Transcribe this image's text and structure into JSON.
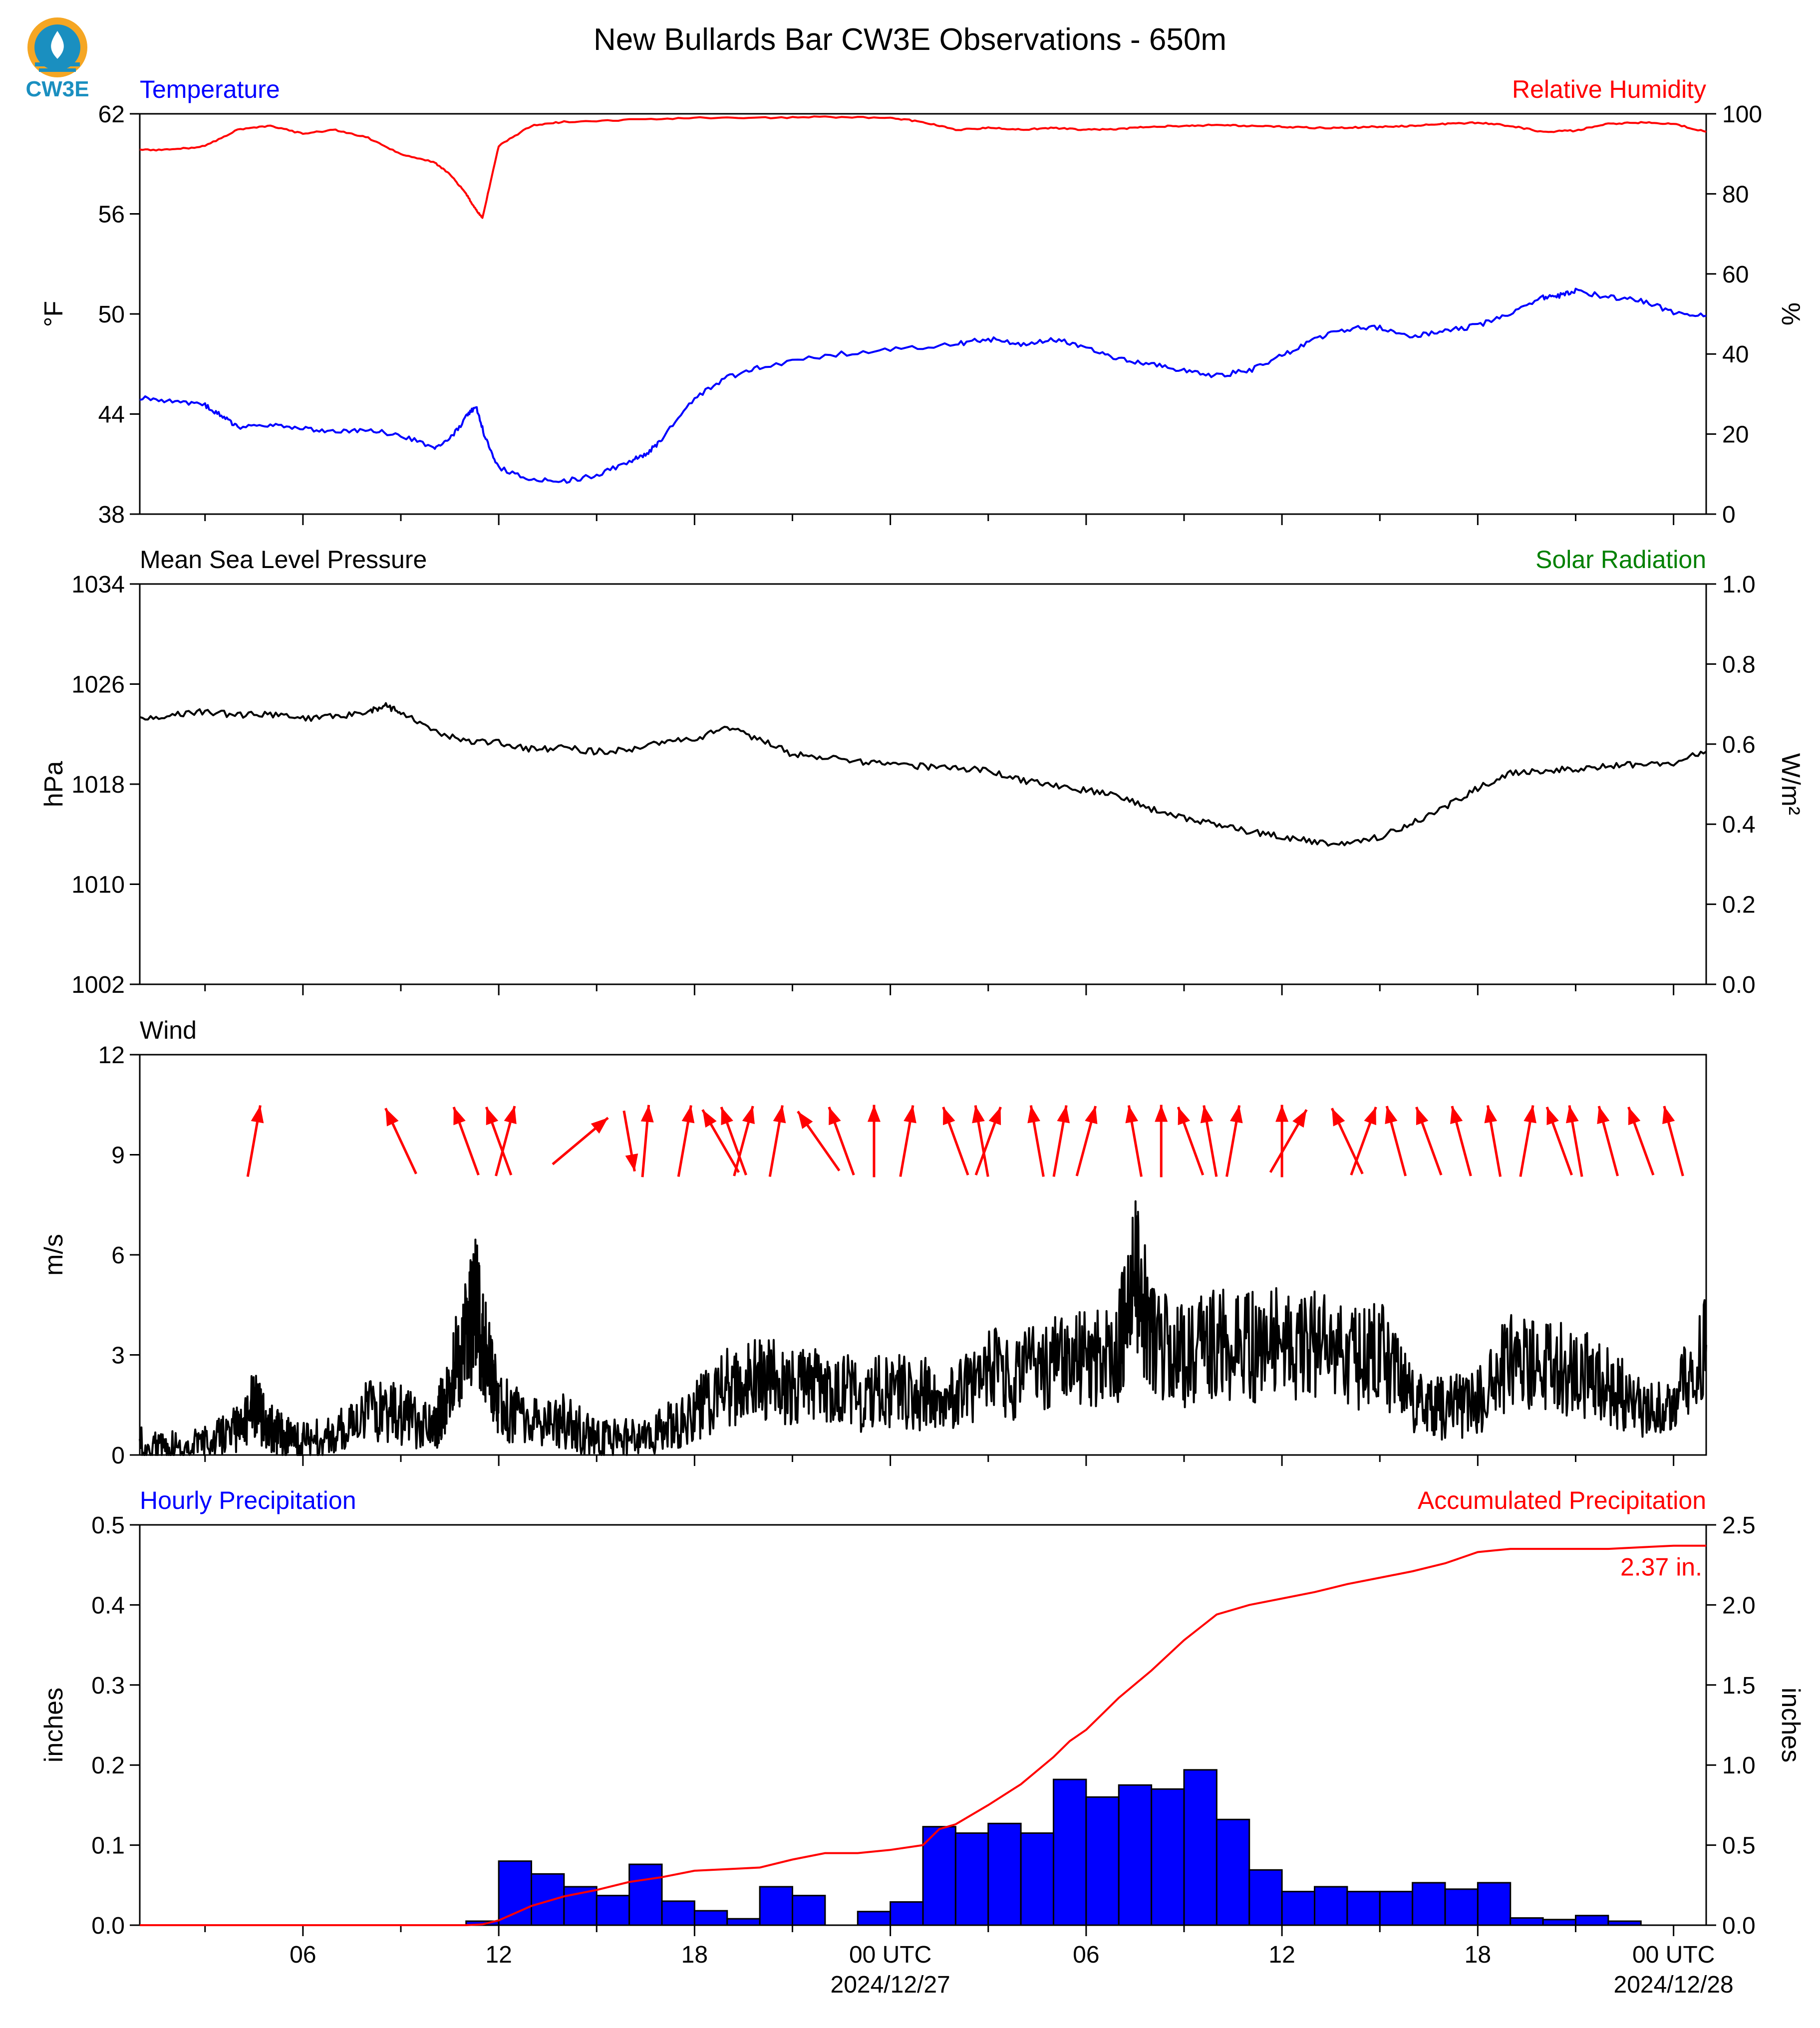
{
  "figure": {
    "title": "New Bullards Bar CW3E Observations - 650m",
    "logo_text": "CW3E"
  },
  "x_axis": {
    "tick_labels": [
      "06",
      "12",
      "18",
      "00 UTC",
      "06",
      "12",
      "18",
      "00 UTC"
    ],
    "tick_hours": [
      6,
      12,
      18,
      24,
      30,
      36,
      42,
      48
    ],
    "date_labels": [
      "2024/12/27",
      "2024/12/28"
    ],
    "date_label_hours": [
      24,
      48
    ],
    "range_hours": [
      1,
      49
    ]
  },
  "chart_data": [
    {
      "type": "line",
      "title_left": "Temperature",
      "title_right": "Relative Humidity",
      "ylabel": "°F",
      "ylabel_right": "%",
      "ylim": [
        38,
        62
      ],
      "ylim_right": [
        0,
        100
      ],
      "yticks": [
        38,
        44,
        50,
        56,
        62
      ],
      "yticks_right": [
        0,
        20,
        40,
        60,
        80,
        100
      ],
      "colors": {
        "title_left": "#0000ff",
        "title_right": "#ff0000"
      },
      "series": [
        {
          "name": "Temperature",
          "axis": "left",
          "color": "#0000ff",
          "x": [
            1,
            2,
            3,
            3.5,
            4,
            5,
            6,
            7,
            8,
            9,
            10,
            10.5,
            11,
            11.3,
            11.6,
            12,
            13,
            14,
            15,
            16,
            16.5,
            17,
            18,
            19,
            20,
            22,
            24,
            26,
            27,
            28,
            29,
            30,
            31,
            32,
            33,
            34,
            35,
            36,
            37,
            38,
            39,
            40,
            41,
            42,
            43,
            44,
            44.5,
            45,
            46,
            47,
            48,
            49
          ],
          "y": [
            45,
            44.8,
            44.5,
            43.9,
            43.2,
            43.3,
            43.1,
            42.9,
            43.1,
            42.7,
            42,
            42.5,
            43.8,
            44.5,
            42.5,
            40.8,
            40.1,
            40,
            40.3,
            41.2,
            41.5,
            42.5,
            45,
            46.2,
            46.8,
            47.5,
            47.9,
            48.2,
            48.5,
            48.2,
            48.5,
            48,
            47.3,
            47,
            46.6,
            46.3,
            46.6,
            47.5,
            48.5,
            49.1,
            49.2,
            48.7,
            49,
            49.3,
            50,
            51,
            51.1,
            51.4,
            51,
            50.8,
            50.1,
            49.9
          ]
        },
        {
          "name": "Relative Humidity",
          "axis": "right",
          "color": "#ff0000",
          "x": [
            1,
            2,
            3,
            4,
            5,
            6,
            7,
            8,
            9,
            10,
            10.5,
            11,
            11.3,
            11.5,
            12,
            13,
            14,
            16,
            18,
            20,
            22,
            24,
            25,
            26,
            27,
            28,
            29,
            30,
            31,
            32,
            33,
            34,
            35,
            36,
            37,
            38,
            39,
            40,
            41,
            42,
            43,
            44,
            45,
            46,
            47,
            48,
            49
          ],
          "y": [
            91,
            91,
            92,
            96,
            97,
            95,
            96,
            94,
            90,
            88,
            85,
            80,
            76,
            74,
            92,
            97,
            98,
            98.5,
            99,
            99,
            99.2,
            99,
            98,
            96,
            96.5,
            96,
            96.5,
            96,
            96.2,
            96.8,
            97,
            97.2,
            97,
            96.8,
            96.5,
            96.5,
            96.8,
            97,
            97.5,
            97.8,
            97,
            95.5,
            95.8,
            97.5,
            97.8,
            97.5,
            95.5
          ]
        }
      ]
    },
    {
      "type": "line",
      "title_left": "Mean Sea Level Pressure",
      "title_right": "Solar Radiation",
      "ylabel": "hPa",
      "ylabel_right": "W/m²",
      "ylim": [
        1002,
        1034
      ],
      "ylim_right": [
        0,
        1.0
      ],
      "yticks": [
        1002,
        1010,
        1018,
        1026,
        1034
      ],
      "yticks_right": [
        0.0,
        0.2,
        0.4,
        0.6,
        0.8,
        1.0
      ],
      "colors": {
        "title_left": "#000000",
        "title_right": "#008000"
      },
      "series": [
        {
          "name": "Mean Sea Level Pressure",
          "axis": "left",
          "color": "#000000",
          "x": [
            1,
            2,
            3,
            4,
            5,
            6,
            7,
            8,
            8.5,
            9,
            10,
            11,
            12,
            13,
            14,
            15,
            16,
            17,
            18,
            19,
            20,
            21,
            22,
            23,
            24,
            25,
            26,
            27,
            28,
            29,
            30,
            31,
            32,
            33,
            34,
            35,
            36,
            37,
            38,
            39,
            40,
            41,
            42,
            43,
            44,
            45,
            46,
            47,
            48,
            49
          ],
          "y": [
            1023.2,
            1023.5,
            1023.8,
            1023.5,
            1023.6,
            1023.2,
            1023.4,
            1023.8,
            1024.3,
            1023.8,
            1022.3,
            1021.4,
            1021.3,
            1020.8,
            1020.9,
            1020.6,
            1020.8,
            1021.3,
            1021.6,
            1022.5,
            1021.6,
            1020.4,
            1020.1,
            1019.8,
            1019.7,
            1019.4,
            1019.3,
            1019.1,
            1018.3,
            1017.9,
            1017.5,
            1017,
            1016,
            1015.3,
            1014.8,
            1014.2,
            1013.8,
            1013.4,
            1013.2,
            1013.8,
            1014.9,
            1016.2,
            1017.7,
            1018.9,
            1019.1,
            1019.2,
            1019.4,
            1019.6,
            1019.7,
            1020.6
          ]
        }
      ]
    },
    {
      "type": "line",
      "title_left": "Wind",
      "ylabel": "m/s",
      "ylim": [
        0,
        12
      ],
      "yticks": [
        0,
        3,
        6,
        9,
        12
      ],
      "series": [
        {
          "name": "Wind",
          "color": "#000000",
          "x": [
            1,
            2,
            3,
            4,
            4.5,
            5,
            5.5,
            6,
            7,
            8,
            9,
            10,
            10.5,
            11,
            11.3,
            11.6,
            12,
            13,
            14,
            15,
            16,
            17,
            18,
            19,
            20,
            21,
            22,
            23,
            24,
            25,
            26,
            27,
            28,
            29,
            30,
            31,
            31.5,
            32,
            33,
            34,
            35,
            36,
            37,
            38,
            39,
            40,
            41,
            42,
            43,
            44,
            45,
            46,
            47,
            48,
            49
          ],
          "y": [
            0.3,
            0.2,
            0.3,
            0.8,
            1.5,
            0.8,
            0.5,
            0.4,
            0.6,
            1.4,
            1.2,
            0.7,
            2.2,
            3.5,
            4.4,
            3,
            1.5,
            0.9,
            1,
            0.5,
            0.5,
            0.8,
            1.3,
            2,
            2.3,
            2,
            2,
            1.8,
            1.9,
            1.8,
            1.7,
            2.5,
            2.4,
            2.7,
            2.8,
            3.2,
            5.5,
            3.6,
            3,
            3.4,
            3.2,
            3.4,
            3.3,
            2.8,
            3.1,
            1.6,
            1.4,
            1.6,
            3,
            2.7,
            2.5,
            2.2,
            1.3,
            1.5,
            3.3
          ]
        }
      ],
      "wind_arrows": {
        "color": "#ff0000",
        "x": [
          4.5,
          9,
          11,
          12,
          12.2,
          14.5,
          16,
          16.5,
          17.7,
          18.8,
          19.2,
          19.5,
          20.5,
          21.8,
          22.5,
          23.5,
          24.5,
          26,
          26.8,
          27,
          28.5,
          29.2,
          30,
          31.5,
          32.3,
          33.2,
          33.8,
          34.5,
          36,
          36.2,
          38,
          38.5,
          39.5,
          40.5,
          41.5,
          42.5,
          43.5,
          44.5,
          45,
          46,
          47,
          48
        ],
        "direction_deg": [
          190,
          155,
          160,
          160,
          195,
          230,
          350,
          185,
          190,
          150,
          160,
          195,
          190,
          145,
          160,
          180,
          190,
          160,
          170,
          200,
          170,
          190,
          195,
          170,
          180,
          160,
          170,
          190,
          180,
          210,
          155,
          200,
          165,
          160,
          165,
          170,
          190,
          160,
          170,
          165,
          160,
          165
        ],
        "length": [
          1,
          1,
          1,
          1,
          1,
          1,
          0.85,
          1,
          1,
          1,
          1,
          1,
          1,
          1,
          1,
          1,
          1,
          1,
          1,
          1,
          1,
          1,
          1,
          1,
          1,
          1,
          1,
          1,
          1,
          1,
          1,
          1,
          1,
          1,
          1,
          1,
          1,
          1,
          1,
          1,
          1,
          1
        ]
      }
    },
    {
      "type": "bar",
      "title_left": "Hourly Precipitation",
      "title_right": "Accumulated Precipitation",
      "ylabel": "inches",
      "ylabel_right": "inches",
      "ylim": [
        0,
        0.5
      ],
      "ylim_right": [
        0,
        2.5
      ],
      "yticks": [
        0.0,
        0.1,
        0.2,
        0.3,
        0.4,
        0.5
      ],
      "yticks_right": [
        0.0,
        0.5,
        1.0,
        1.5,
        2.0,
        2.5
      ],
      "colors": {
        "title_left": "#0000ff",
        "title_right": "#ff0000",
        "bar_fill": "#0000ff",
        "accum_line": "#ff0000"
      },
      "series": [
        {
          "name": "Hourly Precipitation",
          "axis": "left",
          "hour_start": [
            11,
            12,
            13,
            14,
            15,
            16,
            17,
            18,
            19,
            20,
            21,
            23,
            24,
            25,
            26,
            27,
            28,
            29,
            30,
            31,
            32,
            33,
            34,
            35,
            36,
            37,
            38,
            39,
            40,
            41,
            42,
            43,
            44,
            45,
            46
          ],
          "values": [
            0.005,
            0.08,
            0.064,
            0.048,
            0.037,
            0.076,
            0.03,
            0.018,
            0.008,
            0.048,
            0.037,
            0.017,
            0.029,
            0.123,
            0.115,
            0.127,
            0.115,
            0.182,
            0.16,
            0.175,
            0.17,
            0.194,
            0.132,
            0.069,
            0.042,
            0.048,
            0.042,
            0.042,
            0.053,
            0.045,
            0.053,
            0.009,
            0.007,
            0.012,
            0.005
          ]
        },
        {
          "name": "Accumulated Precipitation",
          "axis": "right",
          "x": [
            1,
            11,
            11.5,
            12,
            13,
            14,
            15,
            16,
            17,
            18,
            19,
            20,
            21,
            22,
            23,
            24,
            25,
            25.5,
            26,
            27,
            28,
            29,
            29.5,
            30,
            31,
            32,
            33,
            34,
            35,
            36,
            37,
            38,
            39,
            40,
            41,
            42,
            42.5,
            43,
            44,
            45,
            46,
            47,
            48,
            49
          ],
          "y": [
            0,
            0,
            0.005,
            0.03,
            0.12,
            0.18,
            0.22,
            0.27,
            0.3,
            0.34,
            0.35,
            0.36,
            0.41,
            0.45,
            0.45,
            0.47,
            0.5,
            0.6,
            0.63,
            0.75,
            0.88,
            1.05,
            1.15,
            1.22,
            1.42,
            1.59,
            1.78,
            1.94,
            2.0,
            2.04,
            2.08,
            2.13,
            2.17,
            2.21,
            2.26,
            2.33,
            2.34,
            2.35,
            2.35,
            2.35,
            2.35,
            2.36,
            2.37,
            2.37
          ]
        }
      ],
      "annotation": "2.37 in."
    }
  ]
}
